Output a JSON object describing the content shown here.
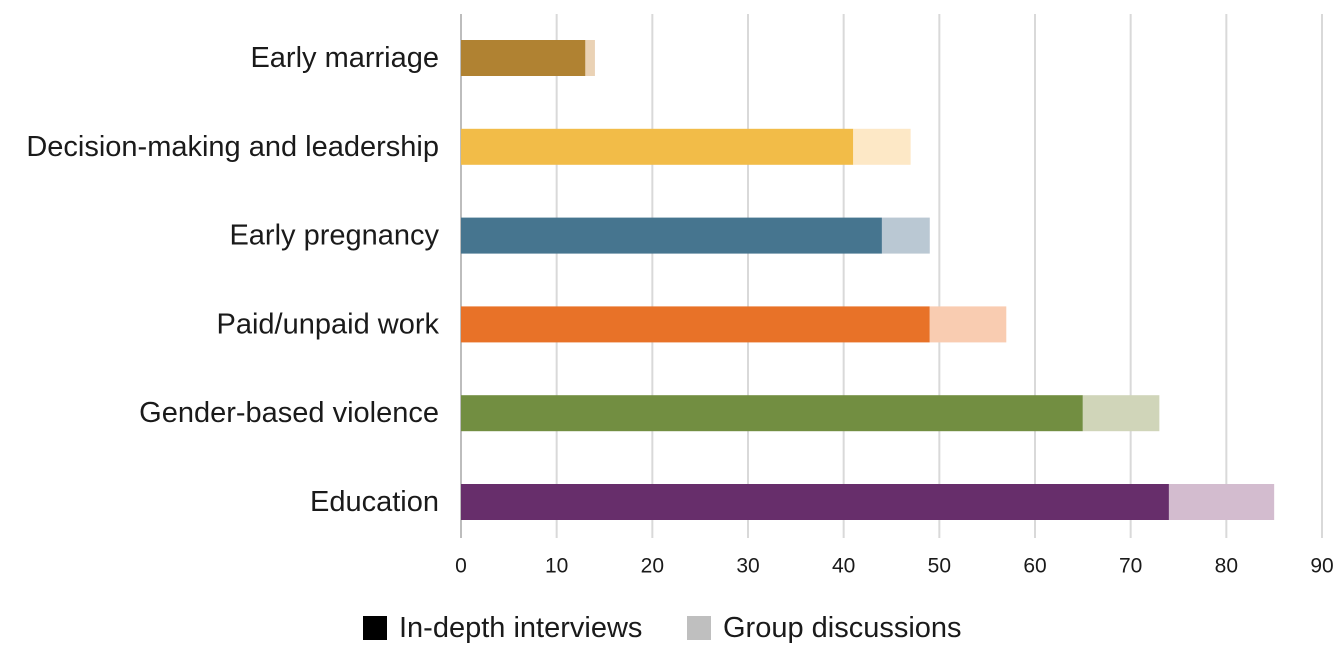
{
  "chart_data": {
    "type": "bar",
    "orientation": "horizontal",
    "stacked": true,
    "categories": [
      "Early marriage",
      "Decision-making and leadership",
      "Early pregnancy",
      "Paid/unpaid work",
      "Gender-based violence",
      "Education"
    ],
    "series": [
      {
        "name": "In-depth interviews",
        "values": [
          13,
          41,
          44,
          49,
          65,
          74
        ]
      },
      {
        "name": "Group discussions",
        "values": [
          1,
          6,
          5,
          8,
          8,
          11
        ]
      }
    ],
    "category_colors": [
      {
        "primary": "#b08232",
        "secondary": "#ead2b5"
      },
      {
        "primary": "#f2bc48",
        "secondary": "#fde8c6"
      },
      {
        "primary": "#46758f",
        "secondary": "#bac8d3"
      },
      {
        "primary": "#e87228",
        "secondary": "#f9ccb1"
      },
      {
        "primary": "#728e41",
        "secondary": "#d0d5b9"
      },
      {
        "primary": "#672e6b",
        "secondary": "#d3bccf"
      }
    ],
    "xlim": [
      0,
      90
    ],
    "xticks": [
      "0",
      "10",
      "20",
      "30",
      "40",
      "50",
      "60",
      "70",
      "80",
      "90"
    ],
    "grid": "vertical",
    "legend": {
      "placement": "bottom-center",
      "entries": [
        {
          "label": "In-depth interviews",
          "color": "#000000"
        },
        {
          "label": "Group discussions",
          "color": "#bfbfbf"
        }
      ]
    },
    "title": "",
    "xlabel": "",
    "ylabel": ""
  }
}
